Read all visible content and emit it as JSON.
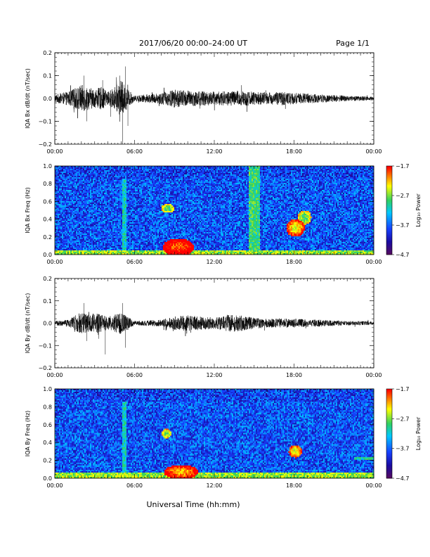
{
  "header": {
    "title": "2017/06/20  00:00–24:00 UT",
    "page": "Page 1/1"
  },
  "colors": {
    "trace": "#000000",
    "colorbar_stops": [
      "#5a0a5a",
      "#1a0aa0",
      "#1540ff",
      "#00c8ff",
      "#30d060",
      "#ffff00",
      "#ff8c00",
      "#ff0000"
    ]
  },
  "chart_data": [
    {
      "type": "line",
      "ylabel": "IQA Bx dB/dt (nT/sec)",
      "ylim": [
        -0.2,
        0.2
      ],
      "yticks": [
        "0.2",
        "0.1",
        "0.0",
        "−0.1",
        "−0.2"
      ],
      "xticks": [
        "00:00",
        "06:00",
        "12:00",
        "18:00",
        "00:00"
      ],
      "xlim": [
        0,
        24
      ],
      "envelope": {
        "x": [
          0,
          1,
          2,
          2.5,
          3,
          3.5,
          4,
          4.5,
          5,
          5.5,
          6,
          8,
          9,
          10,
          12,
          14,
          15,
          16,
          17,
          18,
          20,
          22,
          24
        ],
        "amp": [
          0.018,
          0.03,
          0.06,
          0.05,
          0.04,
          0.05,
          0.03,
          0.05,
          0.08,
          0.04,
          0.012,
          0.025,
          0.04,
          0.035,
          0.03,
          0.035,
          0.03,
          0.025,
          0.03,
          0.025,
          0.018,
          0.012,
          0.008
        ]
      },
      "spikes": [
        {
          "x": 2.2,
          "y": 0.1
        },
        {
          "x": 2.4,
          "y": -0.1
        },
        {
          "x": 3.6,
          "y": 0.08
        },
        {
          "x": 4.2,
          "y": -0.08
        },
        {
          "x": 4.9,
          "y": 0.1
        },
        {
          "x": 5.1,
          "y": -0.2
        },
        {
          "x": 5.3,
          "y": 0.14
        },
        {
          "x": 5.5,
          "y": -0.12
        }
      ]
    },
    {
      "type": "heatmap",
      "ylabel": "IQA Bx Freq (Hz)",
      "ylim": [
        0.0,
        1.0
      ],
      "yticks": [
        "1.0",
        "0.8",
        "0.6",
        "0.4",
        "0.2",
        "0.0"
      ],
      "xticks": [
        "00:00",
        "06:00",
        "12:00",
        "18:00",
        "00:00"
      ],
      "xlim": [
        0,
        24
      ],
      "colorbar": {
        "label": "Log₁₀ Power",
        "ticks": [
          "−1.7",
          "−2.7",
          "−3.7",
          "−4.7"
        ],
        "range": [
          -4.7,
          -1.7
        ]
      },
      "features": [
        {
          "kind": "band",
          "t0": 0,
          "t1": 24,
          "f0": 0.0,
          "f1": 0.05,
          "level": -2.6
        },
        {
          "kind": "blob",
          "t": 9.3,
          "f": 0.08,
          "dt": 1.2,
          "df": 0.1,
          "level": -2.0
        },
        {
          "kind": "blob",
          "t": 18.1,
          "f": 0.3,
          "dt": 0.7,
          "df": 0.1,
          "level": -2.4
        },
        {
          "kind": "blob",
          "t": 18.8,
          "f": 0.42,
          "dt": 0.5,
          "df": 0.08,
          "level": -2.9
        },
        {
          "kind": "stripe",
          "t": 15.0,
          "w": 0.4,
          "f0": 0.0,
          "f1": 1.0,
          "level": -2.9
        },
        {
          "kind": "stripe",
          "t": 5.2,
          "w": 0.15,
          "f0": 0.0,
          "f1": 0.85,
          "level": -3.1
        },
        {
          "kind": "blob",
          "t": 8.5,
          "f": 0.52,
          "dt": 0.5,
          "df": 0.05,
          "level": -2.9
        }
      ]
    },
    {
      "type": "line",
      "ylabel": "IQA By dB/dt (nT/sec)",
      "ylim": [
        -0.2,
        0.2
      ],
      "yticks": [
        "0.2",
        "0.1",
        "0.0",
        "−0.1",
        "−0.2"
      ],
      "xticks": [
        "00:00",
        "06:00",
        "12:00",
        "18:00",
        "00:00"
      ],
      "xlim": [
        0,
        24
      ],
      "envelope": {
        "x": [
          0,
          1,
          2,
          2.5,
          3,
          3.5,
          4,
          4.5,
          5,
          5.5,
          6,
          8,
          9,
          10,
          12,
          13,
          14,
          15,
          16,
          17,
          18,
          20,
          22,
          24
        ],
        "amp": [
          0.01,
          0.015,
          0.05,
          0.04,
          0.045,
          0.04,
          0.03,
          0.04,
          0.05,
          0.03,
          0.01,
          0.015,
          0.03,
          0.035,
          0.025,
          0.04,
          0.035,
          0.025,
          0.02,
          0.02,
          0.02,
          0.015,
          0.01,
          0.008
        ]
      },
      "spikes": [
        {
          "x": 2.2,
          "y": 0.09
        },
        {
          "x": 2.4,
          "y": -0.08
        },
        {
          "x": 3.3,
          "y": -0.07
        },
        {
          "x": 3.8,
          "y": -0.14
        },
        {
          "x": 5.1,
          "y": 0.09
        },
        {
          "x": 5.3,
          "y": -0.11
        }
      ]
    },
    {
      "type": "heatmap",
      "ylabel": "IQA By Freq (Hz)",
      "ylim": [
        0.0,
        1.0
      ],
      "yticks": [
        "1.0",
        "0.8",
        "0.6",
        "0.4",
        "0.2",
        "0.0"
      ],
      "xticks": [
        "00:00",
        "06:00",
        "12:00",
        "18:00",
        "00:00"
      ],
      "xlim": [
        0,
        24
      ],
      "colorbar": {
        "label": "Log₁₀ Power",
        "ticks": [
          "−1.7",
          "−2.7",
          "−3.7",
          "−4.7"
        ],
        "range": [
          -4.7,
          -1.7
        ]
      },
      "features": [
        {
          "kind": "band",
          "t0": 0,
          "t1": 24,
          "f0": 0.0,
          "f1": 0.06,
          "level": -2.6
        },
        {
          "kind": "blob",
          "t": 9.5,
          "f": 0.07,
          "dt": 1.3,
          "df": 0.08,
          "level": -2.2
        },
        {
          "kind": "blob",
          "t": 18.1,
          "f": 0.3,
          "dt": 0.5,
          "df": 0.07,
          "level": -2.5
        },
        {
          "kind": "blob",
          "t": 8.4,
          "f": 0.5,
          "dt": 0.4,
          "df": 0.05,
          "level": -2.8
        },
        {
          "kind": "stripe",
          "t": 5.2,
          "w": 0.15,
          "f0": 0.0,
          "f1": 0.85,
          "level": -3.1
        },
        {
          "kind": "band",
          "t0": 22.5,
          "t1": 24,
          "f0": 0.2,
          "f1": 0.24,
          "level": -3.0
        }
      ]
    }
  ],
  "xaxis_label": "Universal Time (hh:mm)"
}
